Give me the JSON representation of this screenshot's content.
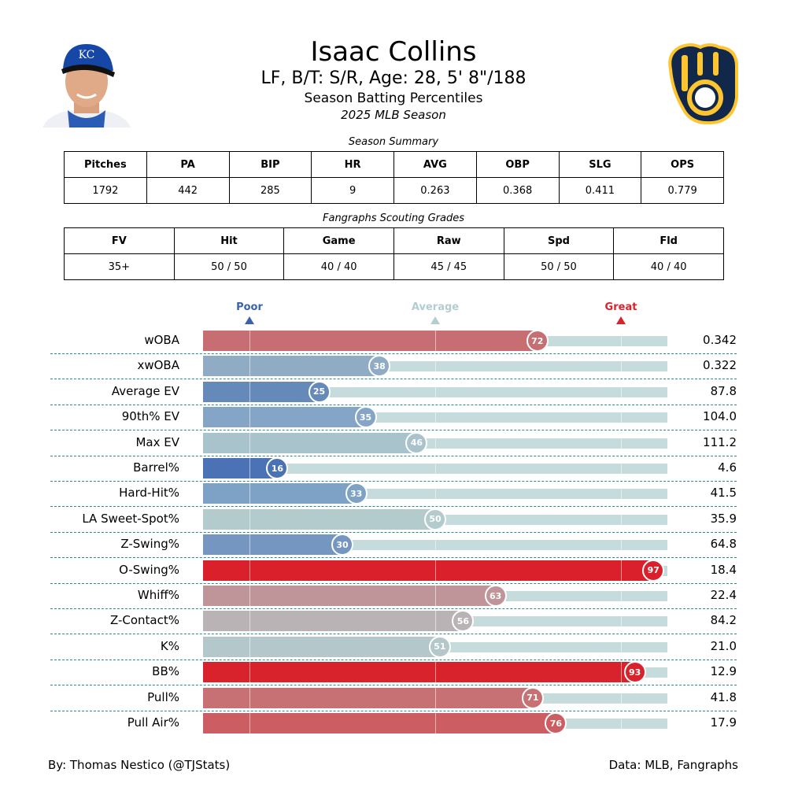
{
  "header": {
    "name": "Isaac Collins",
    "bio": "LF, B/T: S/R, Age: 28, 5' 8\"/188",
    "subtitle": "Season Batting Percentiles",
    "season": "2025 MLB Season",
    "headshot_icon": "player-headshot",
    "headshot_cap_text": "KC",
    "team_logo_icon": "brewers-ball-in-glove-logo",
    "logo_colors": {
      "navy": "#12284b",
      "gold": "#ffc52f"
    }
  },
  "season_summary": {
    "caption": "Season Summary",
    "headers": [
      "Pitches",
      "PA",
      "BIP",
      "HR",
      "AVG",
      "OBP",
      "SLG",
      "OPS"
    ],
    "values": [
      "1792",
      "442",
      "285",
      "9",
      "0.263",
      "0.368",
      "0.411",
      "0.779"
    ]
  },
  "scouting": {
    "caption": "Fangraphs Scouting Grades",
    "headers": [
      "FV",
      "Hit",
      "Game",
      "Raw",
      "Spd",
      "Fld"
    ],
    "values": [
      "35+",
      "50 / 50",
      "40 / 40",
      "45 / 45",
      "50 / 50",
      "40 / 40"
    ]
  },
  "chart_data": {
    "type": "bar",
    "orientation": "horizontal",
    "xlim": [
      0,
      100
    ],
    "markers": [
      {
        "label": "Poor",
        "at": 10,
        "color": "#3b62ad"
      },
      {
        "label": "Average",
        "at": 50,
        "color": "#b3cdd1"
      },
      {
        "label": "Great",
        "at": 90,
        "color": "#d9232c"
      }
    ],
    "categories": [
      "wOBA",
      "xwOBA",
      "Average EV",
      "90th% EV",
      "Max EV",
      "Barrel%",
      "Hard-Hit%",
      "LA Sweet-Spot%",
      "Z-Swing%",
      "O-Swing%",
      "Whiff%",
      "Z-Contact%",
      "K%",
      "BB%",
      "Pull%",
      "Pull Air%"
    ],
    "percentiles": [
      72,
      38,
      25,
      35,
      46,
      16,
      33,
      50,
      30,
      97,
      63,
      56,
      51,
      93,
      71,
      76
    ],
    "stat_values": [
      "0.342",
      "0.322",
      "87.8",
      "104.0",
      "111.2",
      "4.6",
      "41.5",
      "35.9",
      "64.8",
      "18.4",
      "22.4",
      "84.2",
      "21.0",
      "12.9",
      "41.8",
      "17.9"
    ],
    "colors": [
      "#c76e72",
      "#8facc4",
      "#6589b9",
      "#85a5c6",
      "#a8c3cb",
      "#4a72b4",
      "#7ea2c5",
      "#b4cbcd",
      "#7496c0",
      "#da212b",
      "#c0959a",
      "#bab3b5",
      "#b4c8cc",
      "#d9232c",
      "#c77175",
      "#cc5d63"
    ]
  },
  "footer": {
    "left": "By: Thomas Nestico (@TJStats)",
    "right": "Data: MLB, Fangraphs"
  }
}
